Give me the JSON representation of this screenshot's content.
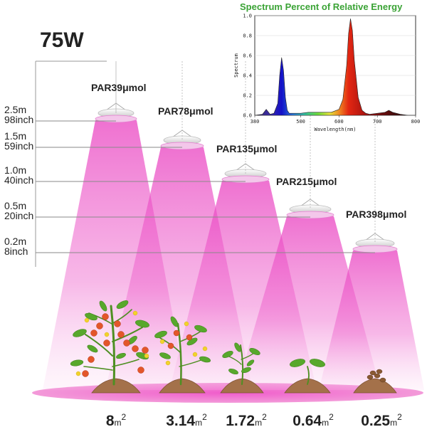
{
  "wattage": "75W",
  "heights": [
    {
      "m": "2.5m",
      "inch": "98inch"
    },
    {
      "m": "1.5m",
      "inch": "59inch"
    },
    {
      "m": "1.0m",
      "inch": "40inch"
    },
    {
      "m": "0.5m",
      "inch": "20inch"
    },
    {
      "m": "0.2m",
      "inch": "8inch"
    }
  ],
  "lamps": [
    {
      "par": "PAR39μmol",
      "area": "8",
      "area_unit": "m",
      "area_exp": "2"
    },
    {
      "par": "PAR78μmol",
      "area": "3.14",
      "area_unit": "m",
      "area_exp": "2"
    },
    {
      "par": "PAR135μmol",
      "area": "1.72",
      "area_unit": "m",
      "area_exp": "2"
    },
    {
      "par": "PAR215μmol",
      "area": "0.64",
      "area_unit": "m",
      "area_exp": "2"
    },
    {
      "par": "PAR398μmol",
      "area": "0.25",
      "area_unit": "m",
      "area_exp": "2"
    }
  ],
  "colors": {
    "beam": "#e93fc0",
    "floor": "#f05ccb",
    "soil": "#a4714a",
    "leaf": "#58a82c",
    "fruit": "#e3562a",
    "flower": "#f2d22b",
    "grid": "#9a9a9a",
    "chart_title": "#3aa335"
  },
  "chart_data": {
    "type": "area",
    "title": "Spectrum Percent of Relative Energy",
    "xlabel": "Wavelength(nm)",
    "ylabel": "Spectrum",
    "xlim": [
      380,
      800
    ],
    "ylim": [
      0,
      1.0
    ],
    "xticks": [
      380,
      500,
      600,
      700,
      800
    ],
    "yticks": [
      "0.0",
      "0.2",
      "0.4",
      "0.6",
      "0.8",
      "1.0"
    ],
    "x": [
      380,
      400,
      410,
      420,
      430,
      440,
      445,
      450,
      455,
      460,
      465,
      470,
      480,
      500,
      520,
      540,
      560,
      580,
      600,
      610,
      620,
      625,
      630,
      635,
      640,
      650,
      660,
      670,
      680,
      700,
      720,
      730,
      740,
      760,
      780,
      800
    ],
    "y": [
      0.0,
      0.01,
      0.06,
      0.01,
      0.02,
      0.12,
      0.4,
      0.58,
      0.45,
      0.18,
      0.05,
      0.02,
      0.02,
      0.02,
      0.03,
      0.03,
      0.03,
      0.03,
      0.06,
      0.16,
      0.5,
      0.82,
      0.97,
      0.85,
      0.55,
      0.18,
      0.05,
      0.02,
      0.01,
      0.02,
      0.03,
      0.05,
      0.03,
      0.01,
      0.0,
      0.0
    ],
    "grid": true
  }
}
